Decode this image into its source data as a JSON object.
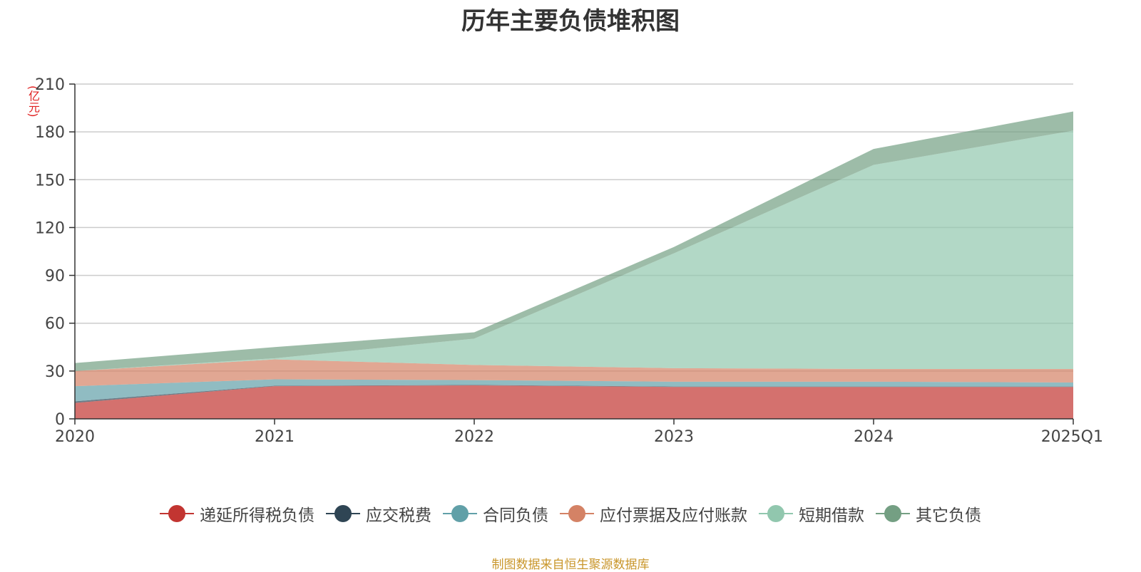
{
  "chart_data": {
    "type": "area",
    "stacked": true,
    "title": "历年主要负债堆积图",
    "unit_label": "(亿元)",
    "categories": [
      "2020",
      "2021",
      "2022",
      "2023",
      "2024",
      "2025Q1"
    ],
    "ylim": [
      0,
      210
    ],
    "yticks": [
      0,
      30,
      60,
      90,
      120,
      150,
      180,
      210
    ],
    "grid": true,
    "legend_position": "bottom",
    "series": [
      {
        "name": "递延所得税负债",
        "color": "#c23531",
        "values": [
          10,
          20.5,
          21,
          20,
          20,
          20
        ]
      },
      {
        "name": "应交税费",
        "color": "#2f4554",
        "values": [
          1,
          0.3,
          0.3,
          0.3,
          0.3,
          0.3
        ]
      },
      {
        "name": "合同负债",
        "color": "#61a0a8",
        "values": [
          9.5,
          4,
          3,
          3,
          3,
          2.5
        ]
      },
      {
        "name": "应付票据及应付账款",
        "color": "#d48265",
        "values": [
          9.5,
          12.5,
          9.5,
          8.5,
          8,
          8.5
        ]
      },
      {
        "name": "短期借款",
        "color": "#91c7ae",
        "values": [
          0,
          0.7,
          16.5,
          72,
          128,
          149.5
        ]
      },
      {
        "name": "其它负债",
        "color": "#749f83",
        "values": [
          5,
          7,
          4,
          4,
          10,
          12
        ]
      }
    ],
    "source": "制图数据来自恒生聚源数据库"
  }
}
